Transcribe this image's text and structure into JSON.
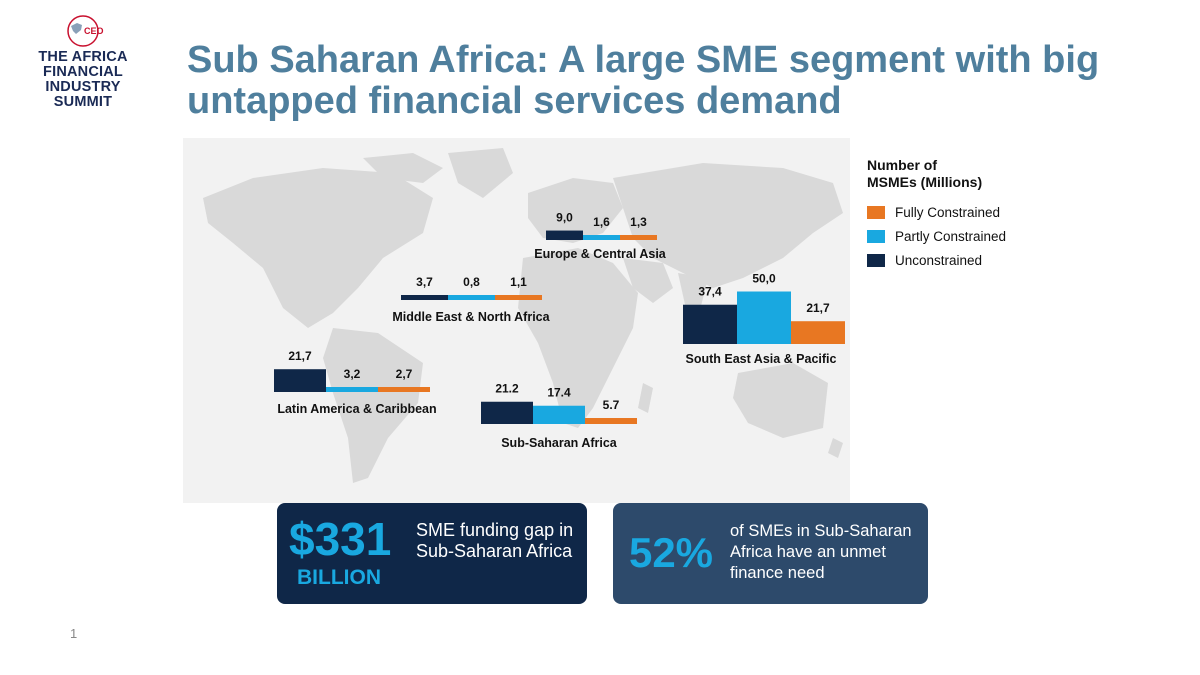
{
  "logo": {
    "badge_text": "CEO",
    "lines": [
      "THE AFRICA",
      "FINANCIAL",
      "INDUSTRY",
      "SUMMIT"
    ]
  },
  "title": {
    "line1": "Sub Saharan Africa: A large SME segment with big",
    "line2": "untapped financial services demand"
  },
  "legend": {
    "title_line1": "Number of",
    "title_line2": "MSMEs (Millions)",
    "items": [
      {
        "label": "Fully Constrained",
        "color": "#e87722"
      },
      {
        "label": "Partly Constrained",
        "color": "#19a8e0"
      },
      {
        "label": "Unconstrained",
        "color": "#0f2748"
      }
    ]
  },
  "chart_data": {
    "type": "bar",
    "title": "",
    "series_names": [
      "Unconstrained",
      "Partly Constrained",
      "Fully Constrained"
    ],
    "colors": {
      "Unconstrained": "#0f2748",
      "Partly Constrained": "#19a8e0",
      "Fully Constrained": "#e87722"
    },
    "regions": [
      {
        "name": "Europe & Central Asia",
        "values": [
          9.0,
          1.6,
          1.3
        ],
        "labels": [
          "9,0",
          "1,6",
          "1,3"
        ]
      },
      {
        "name": "Middle East & North Africa",
        "values": [
          3.7,
          0.8,
          1.1
        ],
        "labels": [
          "3,7",
          "0,8",
          "1,1"
        ]
      },
      {
        "name": "South East Asia  & Pacific",
        "values": [
          37.4,
          50.0,
          21.7
        ],
        "labels": [
          "37,4",
          "50,0",
          "21,7"
        ]
      },
      {
        "name": "Latin America  & Caribbean",
        "values": [
          21.7,
          3.2,
          2.7
        ],
        "labels": [
          "21,7",
          "3,2",
          "2,7"
        ]
      },
      {
        "name": "Sub-Saharan Africa",
        "values": [
          21.2,
          17.4,
          5.7
        ],
        "labels": [
          "21.2",
          "17.4",
          "5.7"
        ]
      }
    ]
  },
  "stats": {
    "gap_value": "$331",
    "gap_unit": "BILLION",
    "gap_text": "SME funding gap in Sub-Saharan Africa",
    "need_value": "52%",
    "need_text": "of SMEs in Sub-Saharan Africa have an unmet finance need"
  },
  "page_number": "1"
}
